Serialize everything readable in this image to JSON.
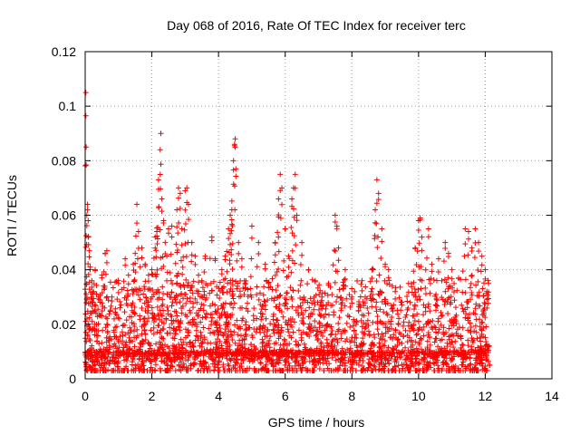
{
  "chart_data": {
    "type": "scatter",
    "title": "Day 068 of 2016, Rate Of TEC Index for receiver terc",
    "xlabel": "GPS time / hours",
    "ylabel": "ROTI / TECUs",
    "xlim": [
      0,
      14
    ],
    "ylim": [
      0,
      0.12
    ],
    "x_ticks": [
      0,
      2,
      4,
      6,
      8,
      10,
      12,
      14
    ],
    "x_tick_labels": [
      "0",
      "2",
      "4",
      "6",
      "8",
      "10",
      "12",
      "14"
    ],
    "y_ticks": [
      0,
      0.02,
      0.04,
      0.06,
      0.08,
      0.1,
      0.12
    ],
    "y_tick_labels": [
      "0",
      "0.02",
      "0.04",
      "0.06",
      "0.08",
      "0.1",
      "0.12"
    ],
    "grid": true,
    "marker": "plus",
    "color": "#ff0000",
    "series": [
      {
        "name": "ROTI",
        "points": [
          [
            0.02,
            0.105
          ],
          [
            0.03,
            0.085
          ],
          [
            0.05,
            0.06
          ],
          [
            0.07,
            0.064
          ],
          [
            0.09,
            0.058
          ],
          [
            0.1,
            0.052
          ],
          [
            0.12,
            0.047
          ],
          [
            0.15,
            0.041
          ],
          [
            0.2,
            0.036
          ],
          [
            0.25,
            0.032
          ],
          [
            0.3,
            0.04
          ],
          [
            0.4,
            0.03
          ],
          [
            0.5,
            0.038
          ],
          [
            0.6,
            0.046
          ],
          [
            0.65,
            0.047
          ],
          [
            0.8,
            0.03
          ],
          [
            1.0,
            0.035
          ],
          [
            1.2,
            0.044
          ],
          [
            1.3,
            0.038
          ],
          [
            1.5,
            0.046
          ],
          [
            1.55,
            0.064
          ],
          [
            1.6,
            0.054
          ],
          [
            1.7,
            0.048
          ],
          [
            1.8,
            0.042
          ],
          [
            1.9,
            0.038
          ],
          [
            2.0,
            0.04
          ],
          [
            2.1,
            0.052
          ],
          [
            2.15,
            0.054
          ],
          [
            2.2,
            0.073
          ],
          [
            2.25,
            0.084
          ],
          [
            2.27,
            0.09
          ],
          [
            2.3,
            0.066
          ],
          [
            2.35,
            0.058
          ],
          [
            2.4,
            0.05
          ],
          [
            2.5,
            0.055
          ],
          [
            2.6,
            0.056
          ],
          [
            2.75,
            0.062
          ],
          [
            2.8,
            0.07
          ],
          [
            2.85,
            0.068
          ],
          [
            2.9,
            0.055
          ],
          [
            3.0,
            0.069
          ],
          [
            3.05,
            0.07
          ],
          [
            3.1,
            0.064
          ],
          [
            3.2,
            0.05
          ],
          [
            3.3,
            0.045
          ],
          [
            3.4,
            0.038
          ],
          [
            3.5,
            0.036
          ],
          [
            3.6,
            0.045
          ],
          [
            3.8,
            0.052
          ],
          [
            3.9,
            0.044
          ],
          [
            4.1,
            0.04
          ],
          [
            4.2,
            0.045
          ],
          [
            4.3,
            0.055
          ],
          [
            4.35,
            0.06
          ],
          [
            4.4,
            0.062
          ],
          [
            4.45,
            0.08
          ],
          [
            4.48,
            0.086
          ],
          [
            4.5,
            0.088
          ],
          [
            4.52,
            0.077
          ],
          [
            4.6,
            0.05
          ],
          [
            4.7,
            0.044
          ],
          [
            4.8,
            0.035
          ],
          [
            5.0,
            0.056
          ],
          [
            5.2,
            0.05
          ],
          [
            5.4,
            0.042
          ],
          [
            5.5,
            0.035
          ],
          [
            5.7,
            0.05
          ],
          [
            5.8,
            0.066
          ],
          [
            5.85,
            0.075
          ],
          [
            5.9,
            0.07
          ],
          [
            6.0,
            0.055
          ],
          [
            6.1,
            0.045
          ],
          [
            6.2,
            0.066
          ],
          [
            6.25,
            0.07
          ],
          [
            6.3,
            0.075
          ],
          [
            6.35,
            0.06
          ],
          [
            6.5,
            0.05
          ],
          [
            6.7,
            0.04
          ],
          [
            6.9,
            0.036
          ],
          [
            7.1,
            0.03
          ],
          [
            7.3,
            0.035
          ],
          [
            7.5,
            0.06
          ],
          [
            7.55,
            0.056
          ],
          [
            7.6,
            0.048
          ],
          [
            7.8,
            0.04
          ],
          [
            8.0,
            0.03
          ],
          [
            8.2,
            0.025
          ],
          [
            8.4,
            0.03
          ],
          [
            8.6,
            0.04
          ],
          [
            8.7,
            0.062
          ],
          [
            8.75,
            0.073
          ],
          [
            8.8,
            0.068
          ],
          [
            8.9,
            0.055
          ],
          [
            9.0,
            0.042
          ],
          [
            9.1,
            0.04
          ],
          [
            9.3,
            0.032
          ],
          [
            9.5,
            0.028
          ],
          [
            9.7,
            0.035
          ],
          [
            9.9,
            0.048
          ],
          [
            10.0,
            0.058
          ],
          [
            10.05,
            0.059
          ],
          [
            10.1,
            0.052
          ],
          [
            10.3,
            0.055
          ],
          [
            10.4,
            0.042
          ],
          [
            10.6,
            0.044
          ],
          [
            10.8,
            0.05
          ],
          [
            10.9,
            0.046
          ],
          [
            11.0,
            0.04
          ],
          [
            11.2,
            0.037
          ],
          [
            11.4,
            0.055
          ],
          [
            11.5,
            0.054
          ],
          [
            11.6,
            0.048
          ],
          [
            11.7,
            0.055
          ],
          [
            11.8,
            0.05
          ],
          [
            11.9,
            0.045
          ],
          [
            12.0,
            0.04
          ],
          [
            12.05,
            0.032
          ],
          [
            12.1,
            0.035
          ],
          [
            12.12,
            0.012
          ],
          [
            12.13,
            0.005
          ]
        ],
        "dense_band": {
          "x_range": [
            0,
            12.1
          ],
          "y_range": [
            0.003,
            0.03
          ],
          "y_typical": 0.012,
          "description_values": [
            0.004,
            0.008,
            0.012,
            0.016,
            0.02,
            0.025,
            0.03
          ]
        }
      }
    ]
  }
}
